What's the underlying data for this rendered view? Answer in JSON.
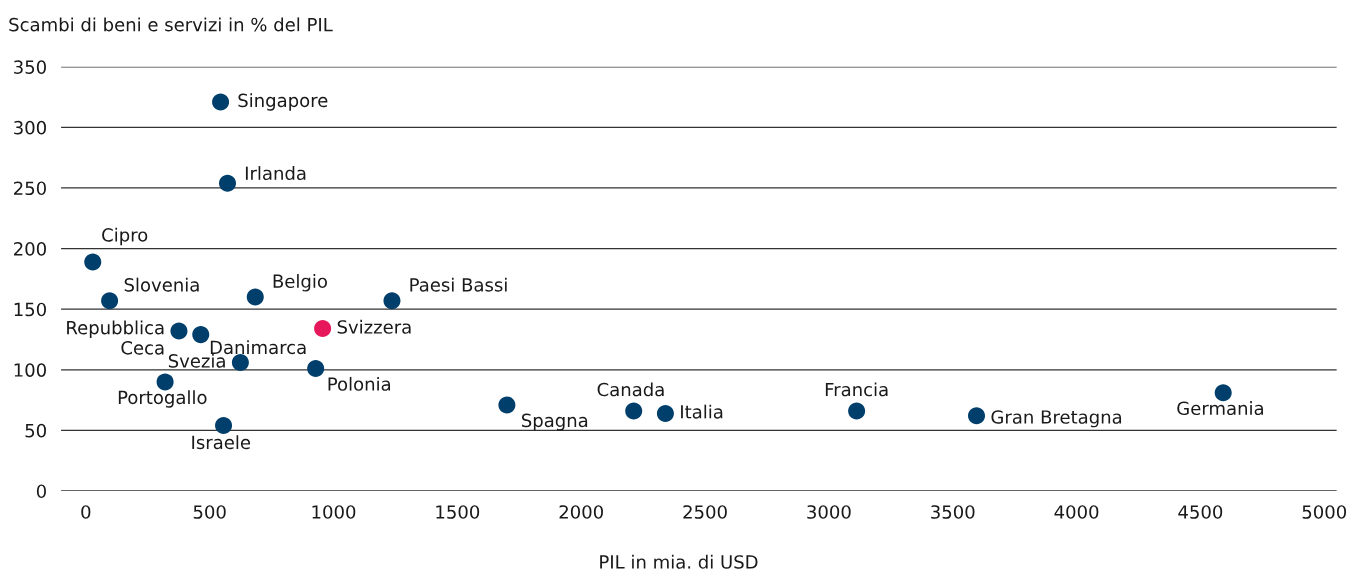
{
  "chart_data": {
    "type": "scatter",
    "xlabel": "PIL in mia. di USD",
    "ylabel": "Scambi di beni e servizi in % del PIL",
    "x": [
      544,
      572,
      28,
      96,
      684,
      1236,
      376,
      464,
      956,
      624,
      928,
      320,
      556,
      1700,
      2212,
      2340,
      3112,
      3596,
      4592
    ],
    "values": [
      321,
      254,
      189,
      157,
      160,
      157,
      132,
      129,
      134,
      106,
      101,
      90,
      54,
      71,
      66,
      64,
      66,
      62,
      81
    ],
    "colors": [
      "#003f6b",
      "#003f6b",
      "#003f6b",
      "#003f6b",
      "#003f6b",
      "#003f6b",
      "#003f6b",
      "#003f6b",
      "#e6185b",
      "#003f6b",
      "#003f6b",
      "#003f6b",
      "#003f6b",
      "#003f6b",
      "#003f6b",
      "#003f6b",
      "#003f6b",
      "#003f6b",
      "#003f6b"
    ],
    "annotations": [
      {
        "text": "Singapore",
        "x": 544,
        "y": 321
      },
      {
        "text": "Irlanda",
        "x": 572,
        "y": 254
      },
      {
        "text": "Cipro",
        "x": 28,
        "y": 189
      },
      {
        "text": "Slovenia",
        "x": 96,
        "y": 157
      },
      {
        "text": "Belgio",
        "x": 684,
        "y": 160
      },
      {
        "text": "Paesi Bassi",
        "x": 1236,
        "y": 157
      },
      {
        "text": "Repubblica\nCeca",
        "x": 376,
        "y": 132
      },
      {
        "text": "Danimarca",
        "x": 464,
        "y": 129
      },
      {
        "text": "Svizzera",
        "x": 956,
        "y": 134
      },
      {
        "text": "Svezia",
        "x": 624,
        "y": 106
      },
      {
        "text": "Polonia",
        "x": 928,
        "y": 101
      },
      {
        "text": "Portogallo",
        "x": 320,
        "y": 90
      },
      {
        "text": "Israele",
        "x": 556,
        "y": 54
      },
      {
        "text": "Spagna",
        "x": 1700,
        "y": 71
      },
      {
        "text": "Canada",
        "x": 2212,
        "y": 66
      },
      {
        "text": "Italia",
        "x": 2340,
        "y": 64
      },
      {
        "text": "Francia",
        "x": 3112,
        "y": 66
      },
      {
        "text": "Gran Bretagna",
        "x": 3596,
        "y": 62
      },
      {
        "text": "Germania",
        "x": 4592,
        "y": 81
      }
    ],
    "xlim": [
      -100,
      5050
    ],
    "ylim": [
      0,
      350
    ],
    "xticks": [
      0,
      500,
      1000,
      1500,
      2000,
      2500,
      3000,
      3500,
      4000,
      4500,
      5000
    ],
    "yticks": [
      0,
      50,
      100,
      150,
      200,
      250,
      300,
      350
    ],
    "grid": "y",
    "marker": "circle"
  }
}
